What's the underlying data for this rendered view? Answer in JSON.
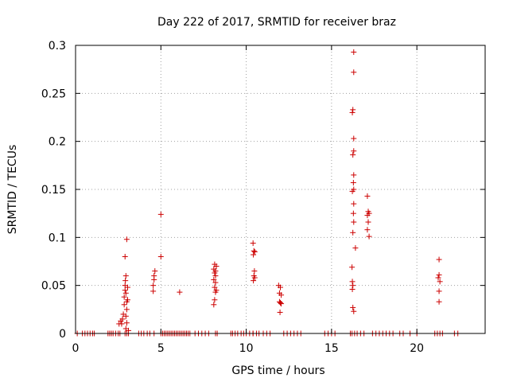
{
  "chart_data": {
    "type": "scatter",
    "title": "Day 222 of 2017, SRMTID for receiver braz",
    "xlabel": "GPS time / hours",
    "ylabel": "SRMTID / TECUs",
    "xlim": [
      0,
      24
    ],
    "ylim": [
      0,
      0.3
    ],
    "xticks": [
      0,
      5,
      10,
      15,
      20
    ],
    "yticks": [
      0,
      0.05,
      0.1,
      0.15,
      0.2,
      0.25,
      0.3
    ],
    "xtick_labels": [
      "0",
      "5",
      "10",
      "15",
      "20"
    ],
    "ytick_labels": [
      "0",
      "0.05",
      "0.1",
      "0.15",
      "0.2",
      "0.25",
      "0.3"
    ],
    "grid": true,
    "marker": "+",
    "color": "#cc0000",
    "series": [
      {
        "name": "SRMTID",
        "points": [
          [
            0.1,
            0
          ],
          [
            0.4,
            0
          ],
          [
            0.55,
            0
          ],
          [
            0.7,
            0
          ],
          [
            0.85,
            0
          ],
          [
            1.0,
            0
          ],
          [
            1.1,
            0
          ],
          [
            1.9,
            0
          ],
          [
            2.0,
            0
          ],
          [
            2.1,
            0
          ],
          [
            2.2,
            0
          ],
          [
            2.35,
            0
          ],
          [
            2.5,
            0
          ],
          [
            2.6,
            0
          ],
          [
            2.55,
            0.01
          ],
          [
            2.65,
            0.013
          ],
          [
            2.7,
            0.01
          ],
          [
            2.75,
            0.015
          ],
          [
            2.8,
            0.02
          ],
          [
            2.85,
            0.03
          ],
          [
            2.85,
            0.038
          ],
          [
            2.9,
            0.045
          ],
          [
            2.9,
            0.05
          ],
          [
            2.92,
            0.055
          ],
          [
            2.95,
            0.06
          ],
          [
            2.9,
            0.08
          ],
          [
            3.0,
            0.098
          ],
          [
            3.0,
            0.033
          ],
          [
            3.0,
            0.025
          ],
          [
            2.95,
            0.042
          ],
          [
            3.05,
            0.048
          ],
          [
            3.05,
            0.035
          ],
          [
            2.95,
            0.018
          ],
          [
            3.0,
            0.011
          ],
          [
            2.95,
            0.005
          ],
          [
            3.1,
            0.003
          ],
          [
            3.0,
            0.0
          ],
          [
            2.9,
            0.0
          ],
          [
            3.1,
            0.0
          ],
          [
            3.7,
            0
          ],
          [
            3.85,
            0
          ],
          [
            4.0,
            0
          ],
          [
            4.2,
            0
          ],
          [
            4.35,
            0
          ],
          [
            4.55,
            0.044
          ],
          [
            4.55,
            0.05
          ],
          [
            4.6,
            0.056
          ],
          [
            4.6,
            0.06
          ],
          [
            4.65,
            0.065
          ],
          [
            4.6,
            0.0
          ],
          [
            5.0,
            0
          ],
          [
            5.1,
            0
          ],
          [
            5.2,
            0
          ],
          [
            5.3,
            0
          ],
          [
            5.4,
            0
          ],
          [
            5.5,
            0
          ],
          [
            5.6,
            0
          ],
          [
            5.7,
            0
          ],
          [
            5.8,
            0
          ],
          [
            5.9,
            0
          ],
          [
            6.0,
            0
          ],
          [
            6.1,
            0
          ],
          [
            6.2,
            0
          ],
          [
            6.3,
            0
          ],
          [
            6.4,
            0
          ],
          [
            6.5,
            0
          ],
          [
            6.6,
            0
          ],
          [
            6.7,
            0
          ],
          [
            5.0,
            0.124
          ],
          [
            5.0,
            0.08
          ],
          [
            6.1,
            0.043
          ],
          [
            7.0,
            0
          ],
          [
            7.2,
            0
          ],
          [
            7.4,
            0
          ],
          [
            7.6,
            0
          ],
          [
            7.8,
            0
          ],
          [
            8.1,
            0.03
          ],
          [
            8.15,
            0.035
          ],
          [
            8.2,
            0.043
          ],
          [
            8.15,
            0.048
          ],
          [
            8.2,
            0.053
          ],
          [
            8.1,
            0.056
          ],
          [
            8.2,
            0.06
          ],
          [
            8.15,
            0.063
          ],
          [
            8.2,
            0.065
          ],
          [
            8.1,
            0.067
          ],
          [
            8.25,
            0.07
          ],
          [
            8.15,
            0.072
          ],
          [
            8.25,
            0.045
          ],
          [
            8.2,
            0.0
          ],
          [
            8.3,
            0.0
          ],
          [
            9.1,
            0
          ],
          [
            9.2,
            0
          ],
          [
            9.35,
            0
          ],
          [
            9.5,
            0
          ],
          [
            9.7,
            0
          ],
          [
            9.85,
            0
          ],
          [
            10.0,
            0
          ],
          [
            10.2,
            0
          ],
          [
            10.4,
            0
          ],
          [
            10.4,
            0.094
          ],
          [
            10.45,
            0.086
          ],
          [
            10.5,
            0.085
          ],
          [
            10.42,
            0.082
          ],
          [
            10.48,
            0.065
          ],
          [
            10.45,
            0.06
          ],
          [
            10.5,
            0.058
          ],
          [
            10.42,
            0.055
          ],
          [
            10.4,
            0.0
          ],
          [
            10.6,
            0
          ],
          [
            10.75,
            0
          ],
          [
            11.0,
            0
          ],
          [
            11.2,
            0
          ],
          [
            11.4,
            0
          ],
          [
            11.9,
            0.05
          ],
          [
            12.0,
            0.048
          ],
          [
            11.95,
            0.042
          ],
          [
            12.05,
            0.04
          ],
          [
            11.95,
            0.033
          ],
          [
            12.0,
            0.032
          ],
          [
            12.05,
            0.031
          ],
          [
            11.98,
            0.022
          ],
          [
            12.2,
            0
          ],
          [
            12.4,
            0
          ],
          [
            12.6,
            0
          ],
          [
            12.8,
            0
          ],
          [
            13.0,
            0
          ],
          [
            13.2,
            0
          ],
          [
            14.6,
            0
          ],
          [
            14.8,
            0
          ],
          [
            15.0,
            0
          ],
          [
            15.2,
            0
          ],
          [
            16.1,
            0
          ],
          [
            16.2,
            0
          ],
          [
            16.35,
            0
          ],
          [
            16.5,
            0
          ],
          [
            16.7,
            0
          ],
          [
            16.9,
            0
          ],
          [
            16.3,
            0.293
          ],
          [
            16.3,
            0.272
          ],
          [
            16.25,
            0.233
          ],
          [
            16.22,
            0.23
          ],
          [
            16.3,
            0.203
          ],
          [
            16.3,
            0.19
          ],
          [
            16.25,
            0.186
          ],
          [
            16.3,
            0.165
          ],
          [
            16.28,
            0.157
          ],
          [
            16.3,
            0.15
          ],
          [
            16.22,
            0.148
          ],
          [
            16.3,
            0.135
          ],
          [
            16.28,
            0.125
          ],
          [
            16.3,
            0.116
          ],
          [
            16.25,
            0.105
          ],
          [
            16.4,
            0.089
          ],
          [
            16.2,
            0.069
          ],
          [
            16.22,
            0.054
          ],
          [
            16.25,
            0.05
          ],
          [
            16.22,
            0.046
          ],
          [
            16.25,
            0.027
          ],
          [
            16.3,
            0.023
          ],
          [
            17.1,
            0.143
          ],
          [
            17.15,
            0.127
          ],
          [
            17.2,
            0.125
          ],
          [
            17.1,
            0.123
          ],
          [
            17.15,
            0.116
          ],
          [
            17.1,
            0.108
          ],
          [
            17.2,
            0.101
          ],
          [
            17.4,
            0
          ],
          [
            17.6,
            0
          ],
          [
            17.8,
            0
          ],
          [
            18.0,
            0
          ],
          [
            18.2,
            0
          ],
          [
            18.4,
            0
          ],
          [
            18.6,
            0
          ],
          [
            19.0,
            0
          ],
          [
            19.2,
            0
          ],
          [
            19.6,
            0
          ],
          [
            20.0,
            0
          ],
          [
            21.05,
            0
          ],
          [
            21.2,
            0
          ],
          [
            21.35,
            0
          ],
          [
            21.5,
            0
          ],
          [
            21.3,
            0.077
          ],
          [
            21.3,
            0.061
          ],
          [
            21.25,
            0.058
          ],
          [
            21.35,
            0.054
          ],
          [
            21.3,
            0.044
          ],
          [
            21.3,
            0.033
          ],
          [
            22.2,
            0
          ],
          [
            22.4,
            0
          ]
        ]
      }
    ]
  }
}
